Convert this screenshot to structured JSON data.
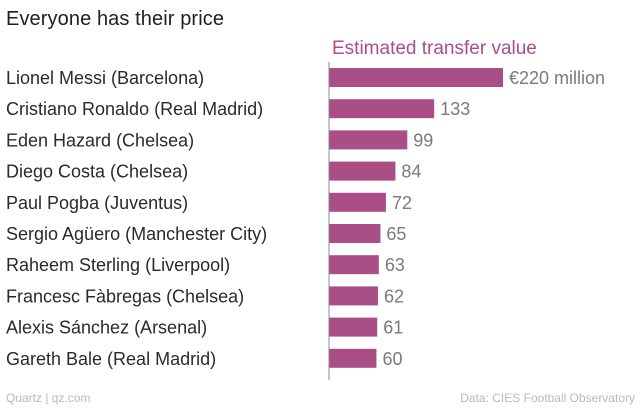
{
  "header": {
    "title": "Everyone has their price"
  },
  "chart_data": {
    "type": "bar",
    "orientation": "horizontal",
    "title": "Everyone has their price",
    "series": [
      {
        "name": "Estimated transfer value",
        "values": [
          220,
          133,
          99,
          84,
          72,
          65,
          63,
          62,
          61,
          60
        ]
      }
    ],
    "categories": [
      "Lionel Messi (Barcelona)",
      "Cristiano Ronaldo (Real Madrid)",
      "Eden Hazard (Chelsea)",
      "Diego Costa (Chelsea)",
      "Paul Pogba (Juventus)",
      "Sergio Agüero (Manchester City)",
      "Raheem Sterling (Liverpool)",
      "Francesc Fàbregas (Chelsea)",
      "Alexis Sánchez (Arsenal)",
      "Gareth Bale (Real Madrid)"
    ],
    "value_labels": [
      "€220 million",
      "133",
      "99",
      "84",
      "72",
      "65",
      "63",
      "62",
      "61",
      "60"
    ],
    "xlim": [
      0,
      220
    ],
    "grid": false,
    "bar_color": "#a94f86"
  },
  "footer": {
    "credit": "Quartz | qz.com",
    "source": "Data: CIES Football Observatory"
  }
}
